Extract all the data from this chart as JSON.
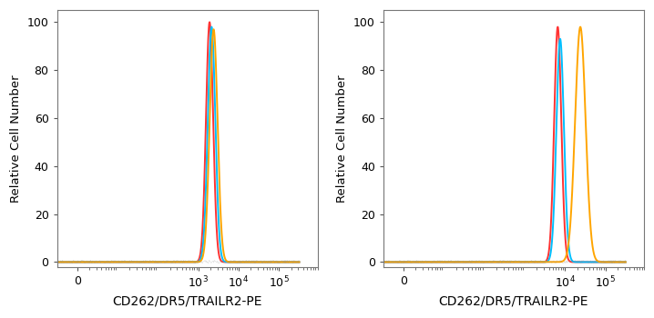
{
  "panel1": {
    "curves": [
      {
        "color": "#FF3333",
        "peak_log": 3.28,
        "sigma_log": 0.088,
        "peak_height": 100,
        "baseline": 0.0
      },
      {
        "color": "#00BFFF",
        "peak_log": 3.33,
        "sigma_log": 0.093,
        "peak_height": 98,
        "baseline": 0.0
      },
      {
        "color": "#FFA500",
        "peak_log": 3.38,
        "sigma_log": 0.098,
        "peak_height": 97,
        "baseline": 0.0
      }
    ],
    "xlim_log": [
      -0.5,
      5.5
    ],
    "xticks_log": [
      0,
      3,
      4,
      5
    ],
    "xtick_labels": [
      "0",
      "$10^3$",
      "$10^4$",
      "$10^5$"
    ],
    "xlabel": "CD262/DR5/TRAILR2-PE",
    "ylabel": "Relative Cell Number",
    "ylim": [
      -2,
      105
    ]
  },
  "panel2": {
    "curves": [
      {
        "color": "#FF3333",
        "peak_log": 3.82,
        "sigma_log": 0.088,
        "peak_height": 98,
        "baseline": 0.0
      },
      {
        "color": "#00BFFF",
        "peak_log": 3.88,
        "sigma_log": 0.093,
        "peak_height": 93,
        "baseline": 0.0
      },
      {
        "color": "#FFA500",
        "peak_log": 4.38,
        "sigma_log": 0.13,
        "peak_height": 98,
        "baseline": 0.0
      }
    ],
    "xlim_log": [
      -0.5,
      5.5
    ],
    "xticks_log": [
      0,
      4,
      5
    ],
    "xtick_labels": [
      "0",
      "$10^4$",
      "$10^5$"
    ],
    "xlabel": "CD262/DR5/TRAILR2-PE",
    "ylabel": "Relative Cell Number",
    "ylim": [
      -2,
      105
    ]
  },
  "background_color": "#FFFFFF",
  "spine_color": "#777777",
  "tick_color": "#555555",
  "linewidth": 1.4
}
